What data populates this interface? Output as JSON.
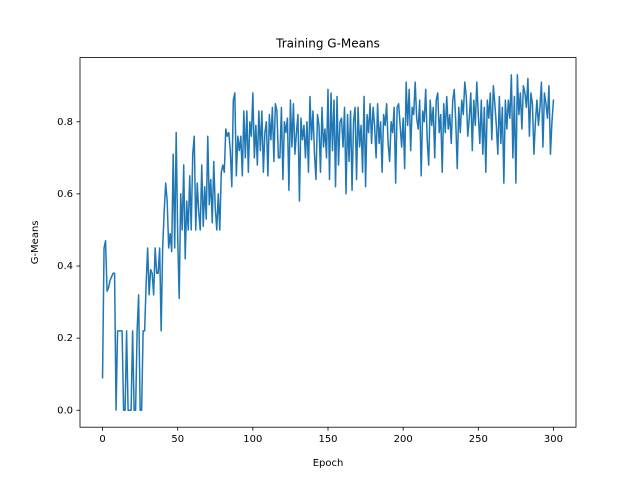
{
  "chart_data": {
    "type": "line",
    "title": "Training G-Means",
    "x_label": "Epoch",
    "y_label": "G-Means",
    "xlim": [
      -15,
      315
    ],
    "ylim": [
      -0.047,
      0.978
    ],
    "xticks": [
      0,
      50,
      100,
      150,
      200,
      250,
      300
    ],
    "yticks": [
      {
        "value": 0,
        "label": "0.0"
      },
      0.2,
      0.4,
      0.6,
      0.8
    ],
    "grid": false,
    "x": [
      0,
      1,
      2,
      3,
      4,
      5,
      6,
      7,
      8,
      9,
      10,
      11,
      12,
      13,
      14,
      15,
      16,
      17,
      18,
      19,
      20,
      21,
      22,
      23,
      24,
      25,
      26,
      27,
      28,
      29,
      30,
      31,
      32,
      33,
      34,
      35,
      36,
      37,
      38,
      39,
      40,
      41,
      42,
      43,
      44,
      45,
      46,
      47,
      48,
      49,
      50,
      51,
      52,
      53,
      54,
      55,
      56,
      57,
      58,
      59,
      60,
      61,
      62,
      63,
      64,
      65,
      66,
      67,
      68,
      69,
      70,
      71,
      72,
      73,
      74,
      75,
      76,
      77,
      78,
      79,
      80,
      81,
      82,
      83,
      84,
      85,
      86,
      87,
      88,
      89,
      90,
      91,
      92,
      93,
      94,
      95,
      96,
      97,
      98,
      99,
      100,
      101,
      102,
      103,
      104,
      105,
      106,
      107,
      108,
      109,
      110,
      111,
      112,
      113,
      114,
      115,
      116,
      117,
      118,
      119,
      120,
      121,
      122,
      123,
      124,
      125,
      126,
      127,
      128,
      129,
      130,
      131,
      132,
      133,
      134,
      135,
      136,
      137,
      138,
      139,
      140,
      141,
      142,
      143,
      144,
      145,
      146,
      147,
      148,
      149,
      150,
      151,
      152,
      153,
      154,
      155,
      156,
      157,
      158,
      159,
      160,
      161,
      162,
      163,
      164,
      165,
      166,
      167,
      168,
      169,
      170,
      171,
      172,
      173,
      174,
      175,
      176,
      177,
      178,
      179,
      180,
      181,
      182,
      183,
      184,
      185,
      186,
      187,
      188,
      189,
      190,
      191,
      192,
      193,
      194,
      195,
      196,
      197,
      198,
      199,
      200,
      201,
      202,
      203,
      204,
      205,
      206,
      207,
      208,
      209,
      210,
      211,
      212,
      213,
      214,
      215,
      216,
      217,
      218,
      219,
      220,
      221,
      222,
      223,
      224,
      225,
      226,
      227,
      228,
      229,
      230,
      231,
      232,
      233,
      234,
      235,
      236,
      237,
      238,
      239,
      240,
      241,
      242,
      243,
      244,
      245,
      246,
      247,
      248,
      249,
      250,
      251,
      252,
      253,
      254,
      255,
      256,
      257,
      258,
      259,
      260,
      261,
      262,
      263,
      264,
      265,
      266,
      267,
      268,
      269,
      270,
      271,
      272,
      273,
      274,
      275,
      276,
      277,
      278,
      279,
      280,
      281,
      282,
      283,
      284,
      285,
      286,
      287,
      288,
      289,
      290,
      291,
      292,
      293,
      294,
      295,
      296,
      297,
      298,
      299,
      300
    ],
    "series": [
      {
        "color": "#1f77b4",
        "values": [
          0.09,
          0.45,
          0.47,
          0.33,
          0.34,
          0.36,
          0.37,
          0.38,
          0.38,
          0.0,
          0.22,
          0.22,
          0.22,
          0.22,
          0.0,
          0.0,
          0.22,
          0.0,
          0.0,
          0.0,
          0.22,
          0.0,
          0.0,
          0.22,
          0.32,
          0.0,
          0.0,
          0.22,
          0.22,
          0.35,
          0.45,
          0.32,
          0.39,
          0.38,
          0.32,
          0.45,
          0.38,
          0.38,
          0.45,
          0.22,
          0.45,
          0.55,
          0.63,
          0.58,
          0.45,
          0.49,
          0.44,
          0.71,
          0.45,
          0.77,
          0.48,
          0.31,
          0.6,
          0.5,
          0.68,
          0.42,
          0.58,
          0.5,
          0.65,
          0.5,
          0.71,
          0.76,
          0.5,
          0.63,
          0.55,
          0.5,
          0.68,
          0.51,
          0.62,
          0.53,
          0.76,
          0.57,
          0.64,
          0.52,
          0.69,
          0.56,
          0.5,
          0.6,
          0.5,
          0.66,
          0.68,
          0.66,
          0.78,
          0.76,
          0.77,
          0.72,
          0.62,
          0.86,
          0.88,
          0.65,
          0.76,
          0.72,
          0.76,
          0.65,
          0.83,
          0.7,
          0.83,
          0.66,
          0.8,
          0.76,
          0.88,
          0.7,
          0.79,
          0.68,
          0.83,
          0.72,
          0.83,
          0.66,
          0.77,
          0.8,
          0.65,
          0.82,
          0.75,
          0.84,
          0.69,
          0.85,
          0.83,
          0.7,
          0.7,
          0.84,
          0.64,
          0.8,
          0.77,
          0.81,
          0.61,
          0.86,
          0.73,
          0.85,
          0.71,
          0.77,
          0.82,
          0.58,
          0.81,
          0.75,
          0.79,
          0.7,
          0.8,
          0.66,
          0.87,
          0.75,
          0.83,
          0.71,
          0.64,
          0.82,
          0.79,
          0.66,
          0.84,
          0.73,
          0.78,
          0.7,
          0.89,
          0.64,
          0.88,
          0.72,
          0.86,
          0.62,
          0.87,
          0.68,
          0.8,
          0.81,
          0.73,
          0.84,
          0.6,
          0.82,
          0.69,
          0.83,
          0.61,
          0.8,
          0.84,
          0.64,
          0.84,
          0.73,
          0.79,
          0.66,
          0.87,
          0.62,
          0.82,
          0.77,
          0.85,
          0.74,
          0.84,
          0.79,
          0.7,
          0.85,
          0.74,
          0.8,
          0.66,
          0.82,
          0.79,
          0.85,
          0.74,
          0.69,
          0.8,
          0.77,
          0.84,
          0.63,
          0.84,
          0.85,
          0.79,
          0.73,
          0.81,
          0.67,
          0.91,
          0.79,
          0.89,
          0.72,
          0.84,
          0.82,
          0.91,
          0.81,
          0.78,
          0.86,
          0.65,
          0.83,
          0.8,
          0.89,
          0.75,
          0.68,
          0.86,
          0.79,
          0.84,
          0.7,
          0.86,
          0.88,
          0.77,
          0.82,
          0.66,
          0.85,
          0.77,
          0.87,
          0.78,
          0.82,
          0.74,
          0.86,
          0.89,
          0.8,
          0.67,
          0.84,
          0.77,
          0.86,
          0.82,
          0.91,
          0.87,
          0.76,
          0.81,
          0.88,
          0.72,
          0.86,
          0.79,
          0.91,
          0.82,
          0.74,
          0.86,
          0.71,
          0.84,
          0.66,
          0.86,
          0.81,
          0.88,
          0.75,
          0.9,
          0.85,
          0.79,
          0.71,
          0.87,
          0.74,
          0.84,
          0.63,
          0.86,
          0.78,
          0.86,
          0.81,
          0.93,
          0.7,
          0.87,
          0.63,
          0.93,
          0.82,
          0.88,
          0.78,
          0.9,
          0.88,
          0.84,
          0.92,
          0.76,
          0.88,
          0.85,
          0.71,
          0.8,
          0.86,
          0.79,
          0.84,
          0.91,
          0.73,
          0.88,
          0.85,
          0.81,
          0.9,
          0.71,
          0.8,
          0.86
        ]
      }
    ]
  }
}
